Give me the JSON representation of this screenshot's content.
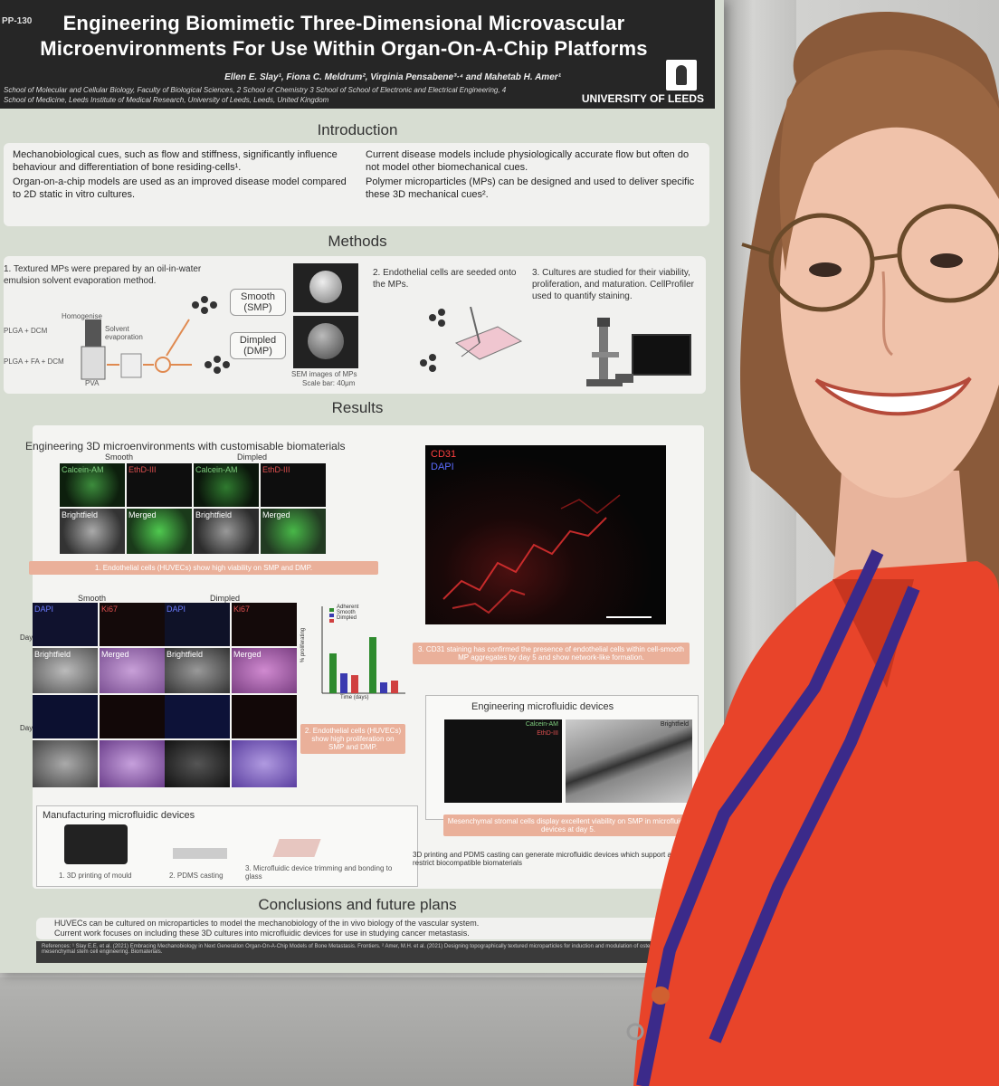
{
  "poster": {
    "id": "PP-130",
    "title_line1": "Engineering Biomimetic Three-Dimensional Microvascular",
    "title_line2": "Microenvironments For Use Within Organ-On-A-Chip Platforms",
    "authors": "Ellen E. Slay¹, Fiona C. Meldrum², Virginia Pensabene³·⁴ and Mahetab H. Amer¹",
    "affiliations": "School of Molecular and Cellular Biology, Faculty of Biological Sciences, 2 School of Chemistry 3 School of School of Electronic and Electrical Engineering, 4 School of Medicine, Leeds Institute of Medical Research, University of Leeds, Leeds, United Kingdom",
    "university": "UNIVERSITY OF LEEDS",
    "sections": {
      "introduction": "Introduction",
      "methods": "Methods",
      "results": "Results",
      "conclusions": "Conclusions and future plans"
    },
    "intro": {
      "left1": "Mechanobiological cues, such as flow and stiffness, significantly influence behaviour and differentiation of bone residing-cells¹.",
      "left2": "Organ-on-a-chip models are used as an improved disease model compared to 2D static in vitro cultures.",
      "right1": "Current disease models include physiologically accurate flow but often do not model other biomechanical cues.",
      "right2": "Polymer microparticles (MPs) can be designed and used to deliver specific these 3D mechanical cues²."
    },
    "methods": {
      "step1": "1. Textured MPs were prepared by an oil-in-water emulsion solvent evaporation method.",
      "smooth": "Smooth (SMP)",
      "dimpled": "Dimpled (DMP)",
      "plga_dcm": "PLGA + DCM",
      "plga_fa": "PLGA + FA + DCM",
      "homogenise": "Homogenise",
      "solvent": "Solvent evaporation",
      "pva": "PVA",
      "sem": "SEM images of MPs",
      "scale": "Scale bar: 40μm",
      "step2": "2. Endothelial cells are seeded onto the MPs.",
      "step3": "3. Cultures are studied for their viability, proliferation, and maturation. CellProfiler used to quantify staining."
    },
    "results": {
      "subtitle1": "Engineering 3D microenvironments with customisable biomaterials",
      "smooth_lbl": "Smooth",
      "dimpled_lbl": "Dimpled",
      "calcein": "Calcein-AM",
      "ethd": "EthD-III",
      "brightfield": "Brightfield",
      "merged": "Merged",
      "cap1": "1. Endothelial cells (HUVECs) show high viability on SMP and DMP.",
      "cd31": "CD31",
      "dapi": "DAPI",
      "cap3": "3. CD31 staining has confirmed the presence of endothelial cells within cell-smooth MP aggregates by day 5 and show network-like formation.",
      "dapi2": "DAPI",
      "ki67": "Ki67",
      "day1": "Day 1",
      "day5": "Day 5",
      "legend_adherent": "Adherent",
      "legend_smooth": "Smooth",
      "legend_dimpled": "Dimpled",
      "ylabel": "% proliferating",
      "xlabel": "Time (days)",
      "cap2": "2. Endothelial cells (HUVECs) show high proliferation on SMP and DMP.",
      "subtitle2": "Engineering microfluidic devices",
      "calcein2": "Calcein-AM",
      "ethd2": "EthD-III",
      "brightfield2": "Brightfield",
      "cap4": "Mesenchymal stromal cells display excellent viability on SMP in microfluidic devices at day 5.",
      "subtitle3": "Manufacturing microfluidic devices",
      "mf1": "1. 3D printing of mould",
      "mf2": "2. PDMS casting",
      "mf3": "3. Microfluidic device trimming and bonding to glass",
      "mf_cap": "3D printing and PDMS casting can generate microfluidic devices which support and restrict biocompatible biomaterials"
    },
    "conclusions": {
      "c1": "HUVECs can be cultured on microparticles to model the mechanobiology of the in vivo biology of the vascular system.",
      "c2": "Current work focuses on including these 3D cultures into microfluidic devices for use in studying cancer metastasis."
    },
    "references": "References: ¹ Slay E.E. et al. (2021) Embracing Mechanobiology in Next Generation Organ-On-A-Chip Models of Bone Metastasis. Frontiers. ² Amer, M.H. et al. (2021) Designing topographically textured microparticles for induction and modulation of osteogenesis in mesenchymal stem cell engineering. Biomaterials."
  },
  "colors": {
    "poster_bg": "#d7ddd2",
    "header": "#262626",
    "caption": "#eab09a",
    "shirt": "#e8442a",
    "lanyard": "#3b2a8a"
  }
}
